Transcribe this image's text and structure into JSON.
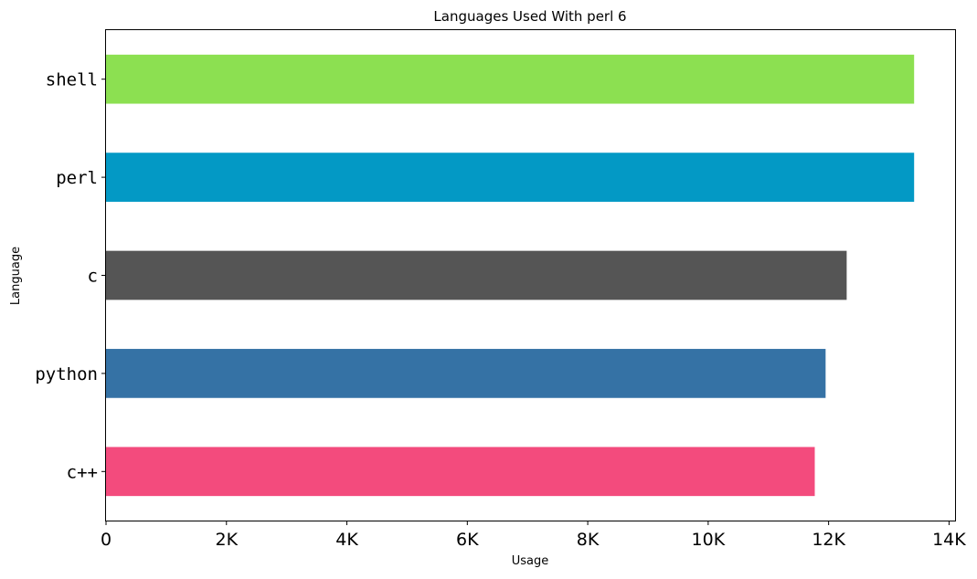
{
  "chart_data": {
    "type": "bar",
    "orientation": "horizontal",
    "title": "Languages Used With perl 6",
    "xlabel": "Usage",
    "ylabel": "Language",
    "categories": [
      "shell",
      "perl",
      "c",
      "python",
      "c++"
    ],
    "values": [
      13420,
      13420,
      12300,
      11950,
      11770
    ],
    "colors": [
      "#8ce051",
      "#0399c5",
      "#555555",
      "#3572a5",
      "#f34b7d"
    ],
    "xlim": [
      0,
      14100
    ],
    "xticks": [
      0,
      2000,
      4000,
      6000,
      8000,
      10000,
      12000,
      14000
    ],
    "xtick_labels": [
      "0",
      "2K",
      "4K",
      "6K",
      "8K",
      "10K",
      "12K",
      "14K"
    ],
    "grid": false,
    "legend": "none"
  }
}
